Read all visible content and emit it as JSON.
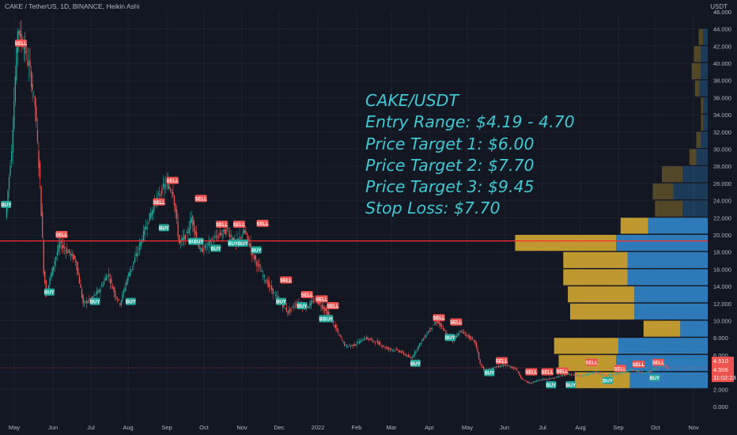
{
  "header": {
    "title": "CAKE / TetherUS, 1D, BINANCE, Heikin Ashi"
  },
  "axis_unit": "USDT",
  "annotation": {
    "lines": [
      "CAKE/USDT",
      "Entry Range: $4.19 - 4.70",
      "Price Target 1: $6.00",
      "Price Target 2: $7.70",
      "Price Target 3: $9.45",
      "Stop Loss: $7.70"
    ]
  },
  "price_labels": {
    "last_price": "4.510",
    "current": "4.506",
    "countdown": "11:02:23"
  },
  "colors": {
    "background": "#131722",
    "bull": "#26a69a",
    "bear": "#ef5350",
    "annotation": "#3fc8d3",
    "hline": "#ff2e2e",
    "vp_up": "#c8a030",
    "vp_down": "#2f7fc1",
    "axis_text": "#b2b5be"
  },
  "chart_data": {
    "type": "candlestick",
    "title": "CAKE / TetherUS, 1D, BINANCE, Heikin Ashi",
    "ylabel": "USDT",
    "ylim": [
      -1,
      47
    ],
    "y_ticks": [
      "0.000",
      "2.000",
      "4.000",
      "6.000",
      "8.000",
      "10.000",
      "12.000",
      "14.000",
      "16.000",
      "18.000",
      "20.000",
      "22.000",
      "24.000",
      "26.000",
      "28.000",
      "30.000",
      "32.000",
      "34.000",
      "36.000",
      "38.000",
      "40.000",
      "42.000",
      "44.000",
      "46.000"
    ],
    "x_ticks": [
      "May",
      "Jun",
      "Jul",
      "Aug",
      "Sep",
      "Oct",
      "Nov",
      "Dec",
      "2022",
      "Feb",
      "Mar",
      "Apr",
      "May",
      "Jun",
      "Jul",
      "Aug",
      "Sep",
      "Oct",
      "Nov"
    ],
    "price_path": [
      [
        "2021-04-20",
        22.0
      ],
      [
        "2021-04-25",
        30.0
      ],
      [
        "2021-04-30",
        44.0
      ],
      [
        "2021-05-05",
        42.0
      ],
      [
        "2021-05-10",
        39.0
      ],
      [
        "2021-05-14",
        35.0
      ],
      [
        "2021-05-18",
        26.0
      ],
      [
        "2021-05-21",
        16.0
      ],
      [
        "2021-05-23",
        13.0
      ],
      [
        "2021-05-28",
        16.0
      ],
      [
        "2021-06-03",
        19.0
      ],
      [
        "2021-06-10",
        18.0
      ],
      [
        "2021-06-16",
        17.0
      ],
      [
        "2021-06-22",
        12.0
      ],
      [
        "2021-06-28",
        12.5
      ],
      [
        "2021-07-05",
        13.5
      ],
      [
        "2021-07-12",
        15.5
      ],
      [
        "2021-07-18",
        13.0
      ],
      [
        "2021-07-22",
        12.0
      ],
      [
        "2021-07-28",
        15.0
      ],
      [
        "2021-08-05",
        18.0
      ],
      [
        "2021-08-12",
        21.0
      ],
      [
        "2021-08-20",
        24.0
      ],
      [
        "2021-08-28",
        26.0
      ],
      [
        "2021-09-03",
        25.0
      ],
      [
        "2021-09-08",
        19.0
      ],
      [
        "2021-09-14",
        20.0
      ],
      [
        "2021-09-18",
        22.0
      ],
      [
        "2021-09-25",
        18.0
      ],
      [
        "2021-10-02",
        19.0
      ],
      [
        "2021-10-10",
        20.0
      ],
      [
        "2021-10-17",
        20.5
      ],
      [
        "2021-10-24",
        19.0
      ],
      [
        "2021-10-31",
        20.5
      ],
      [
        "2021-11-06",
        18.0
      ],
      [
        "2021-11-12",
        16.0
      ],
      [
        "2021-11-20",
        14.0
      ],
      [
        "2021-11-27",
        12.5
      ],
      [
        "2021-12-05",
        11.0
      ],
      [
        "2021-12-12",
        12.0
      ],
      [
        "2021-12-20",
        11.5
      ],
      [
        "2021-12-27",
        12.5
      ],
      [
        "2022-01-03",
        11.5
      ],
      [
        "2022-01-08",
        10.5
      ],
      [
        "2022-01-15",
        8.5
      ],
      [
        "2022-01-21",
        7.0
      ],
      [
        "2022-01-28",
        7.2
      ],
      [
        "2022-02-06",
        8.0
      ],
      [
        "2022-02-15",
        7.5
      ],
      [
        "2022-02-23",
        6.8
      ],
      [
        "2022-03-05",
        6.5
      ],
      [
        "2022-03-15",
        5.6
      ],
      [
        "2022-03-23",
        7.5
      ],
      [
        "2022-03-30",
        9.0
      ],
      [
        "2022-04-05",
        10.0
      ],
      [
        "2022-04-12",
        8.5
      ],
      [
        "2022-04-18",
        7.8
      ],
      [
        "2022-04-24",
        8.8
      ],
      [
        "2022-04-30",
        8.2
      ],
      [
        "2022-05-06",
        7.5
      ],
      [
        "2022-05-10",
        5.0
      ],
      [
        "2022-05-14",
        4.0
      ],
      [
        "2022-05-22",
        4.6
      ],
      [
        "2022-05-31",
        4.8
      ],
      [
        "2022-06-08",
        4.4
      ],
      [
        "2022-06-13",
        3.2
      ],
      [
        "2022-06-19",
        2.7
      ],
      [
        "2022-06-27",
        3.1
      ],
      [
        "2022-07-08",
        3.3
      ],
      [
        "2022-07-20",
        3.8
      ],
      [
        "2022-07-31",
        3.5
      ],
      [
        "2022-08-10",
        4.0
      ],
      [
        "2022-08-20",
        3.6
      ],
      [
        "2022-08-31",
        3.9
      ],
      [
        "2022-09-10",
        4.3
      ],
      [
        "2022-09-20",
        3.9
      ],
      [
        "2022-09-30",
        4.4
      ],
      [
        "2022-10-05",
        4.8
      ],
      [
        "2022-10-10",
        4.5
      ]
    ],
    "signals": [
      {
        "label": "SELL",
        "date": "2021-05-02",
        "price": 42.3
      },
      {
        "label": "BUY",
        "date": "2021-04-20",
        "price": 23.5
      },
      {
        "label": "BUY",
        "date": "2021-05-25",
        "price": 13.3
      },
      {
        "label": "SELL",
        "date": "2021-06-04",
        "price": 20.0
      },
      {
        "label": "BUY",
        "date": "2021-07-01",
        "price": 12.2
      },
      {
        "label": "BUY",
        "date": "2021-07-30",
        "price": 12.2
      },
      {
        "label": "SELL",
        "date": "2021-08-22",
        "price": 23.8
      },
      {
        "label": "BUY",
        "date": "2021-08-26",
        "price": 20.8
      },
      {
        "label": "SELL",
        "date": "2021-09-02",
        "price": 26.3
      },
      {
        "label": "SELL",
        "date": "2021-09-25",
        "price": 24.2
      },
      {
        "label": "BUY",
        "date": "2021-09-19",
        "price": 19.2
      },
      {
        "label": "BUY",
        "date": "2021-09-23",
        "price": 19.2
      },
      {
        "label": "BUY",
        "date": "2021-10-07",
        "price": 18.4
      },
      {
        "label": "SELL",
        "date": "2021-10-12",
        "price": 21.2
      },
      {
        "label": "BUY",
        "date": "2021-10-21",
        "price": 19.0
      },
      {
        "label": "BUY",
        "date": "2021-10-29",
        "price": 19.0
      },
      {
        "label": "SELL",
        "date": "2021-10-26",
        "price": 21.2
      },
      {
        "label": "BUY",
        "date": "2021-11-09",
        "price": 18.2
      },
      {
        "label": "SELL",
        "date": "2021-11-14",
        "price": 21.3
      },
      {
        "label": "BUY",
        "date": "2021-11-29",
        "price": 12.2
      },
      {
        "label": "SELL",
        "date": "2021-12-03",
        "price": 14.7
      },
      {
        "label": "BUY",
        "date": "2021-12-16",
        "price": 11.7
      },
      {
        "label": "SELL",
        "date": "2021-12-20",
        "price": 13.0
      },
      {
        "label": "SELL",
        "date": "2022-01-01",
        "price": 12.5
      },
      {
        "label": "BUY",
        "date": "2022-01-03",
        "price": 10.2
      },
      {
        "label": "SELL",
        "date": "2022-01-10",
        "price": 11.7
      },
      {
        "label": "BUY",
        "date": "2022-01-06",
        "price": 10.2
      },
      {
        "label": "BUY",
        "date": "2022-03-18",
        "price": 5.0
      },
      {
        "label": "SELL",
        "date": "2022-04-06",
        "price": 10.3
      },
      {
        "label": "BUY",
        "date": "2022-04-15",
        "price": 8.0
      },
      {
        "label": "SELL",
        "date": "2022-04-20",
        "price": 9.8
      },
      {
        "label": "BUY",
        "date": "2022-05-17",
        "price": 3.9
      },
      {
        "label": "SELL",
        "date": "2022-05-27",
        "price": 5.3
      },
      {
        "label": "SELL",
        "date": "2022-06-20",
        "price": 4.0
      },
      {
        "label": "SELL",
        "date": "2022-07-03",
        "price": 4.0
      },
      {
        "label": "BUY",
        "date": "2022-07-06",
        "price": 2.5
      },
      {
        "label": "SELL",
        "date": "2022-07-15",
        "price": 4.1
      },
      {
        "label": "BUY",
        "date": "2022-07-22",
        "price": 2.5
      },
      {
        "label": "SELL",
        "date": "2022-08-08",
        "price": 5.1
      },
      {
        "label": "BUY",
        "date": "2022-08-21",
        "price": 3.0
      },
      {
        "label": "SELL",
        "date": "2022-08-31",
        "price": 4.4
      },
      {
        "label": "SELL",
        "date": "2022-09-15",
        "price": 4.9
      },
      {
        "label": "BUY",
        "date": "2022-09-28",
        "price": 3.3
      },
      {
        "label": "SELL",
        "date": "2022-10-01",
        "price": 5.1
      }
    ],
    "horizontal_line": {
      "price": 19.3
    },
    "volume_profile": [
      {
        "price": 43.0,
        "up": 0.1,
        "down": 0.1
      },
      {
        "price": 41.0,
        "up": 0.15,
        "down": 0.15
      },
      {
        "price": 39.0,
        "up": 0.2,
        "down": 0.15
      },
      {
        "price": 37.0,
        "up": 0.1,
        "down": 0.18
      },
      {
        "price": 35.0,
        "up": 0.05,
        "down": 0.1
      },
      {
        "price": 33.0,
        "up": 0.05,
        "down": 0.1
      },
      {
        "price": 31.0,
        "up": 0.1,
        "down": 0.15
      },
      {
        "price": 29.0,
        "up": 0.15,
        "down": 0.25
      },
      {
        "price": 27.0,
        "up": 0.45,
        "down": 0.55
      },
      {
        "price": 25.0,
        "up": 0.45,
        "down": 0.75
      },
      {
        "price": 23.0,
        "up": 0.6,
        "down": 0.55
      },
      {
        "price": 21.0,
        "up": 0.6,
        "down": 1.3
      },
      {
        "price": 19.0,
        "up": 2.2,
        "down": 2.0
      },
      {
        "price": 17.0,
        "up": 1.4,
        "down": 1.75
      },
      {
        "price": 15.0,
        "up": 1.4,
        "down": 1.75
      },
      {
        "price": 13.0,
        "up": 1.45,
        "down": 1.6
      },
      {
        "price": 11.0,
        "up": 1.4,
        "down": 1.6
      },
      {
        "price": 9.0,
        "up": 0.8,
        "down": 0.6
      },
      {
        "price": 7.0,
        "up": 1.4,
        "down": 1.95
      },
      {
        "price": 5.0,
        "up": 1.25,
        "down": 2.0
      },
      {
        "price": 3.0,
        "up": 1.2,
        "down": 1.7
      }
    ]
  }
}
